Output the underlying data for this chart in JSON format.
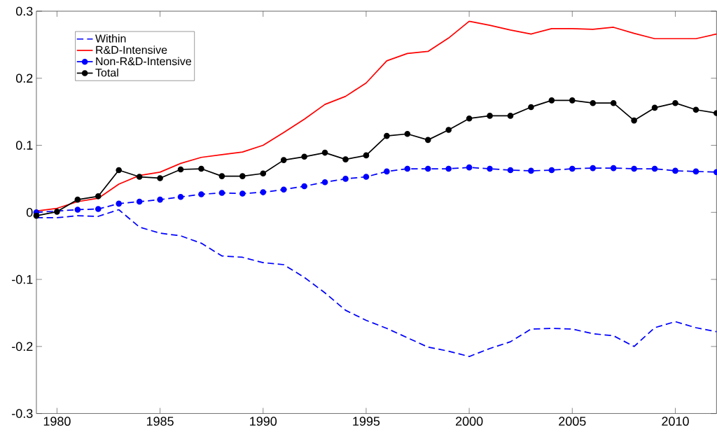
{
  "chart_data": {
    "type": "line",
    "x": [
      1979,
      1980,
      1981,
      1982,
      1983,
      1984,
      1985,
      1986,
      1987,
      1988,
      1989,
      1990,
      1991,
      1992,
      1993,
      1994,
      1995,
      1996,
      1997,
      1998,
      1999,
      2000,
      2001,
      2002,
      2003,
      2004,
      2005,
      2006,
      2007,
      2008,
      2009,
      2010,
      2011,
      2012
    ],
    "series": [
      {
        "name": "Within",
        "color": "#0000ff",
        "line_style": "dashed",
        "marker": "none",
        "values": [
          -0.008,
          -0.008,
          -0.005,
          -0.006,
          0.004,
          -0.022,
          -0.031,
          -0.035,
          -0.046,
          -0.065,
          -0.067,
          -0.075,
          -0.078,
          -0.097,
          -0.12,
          -0.146,
          -0.161,
          -0.173,
          -0.187,
          -0.201,
          -0.207,
          -0.215,
          -0.203,
          -0.193,
          -0.174,
          -0.173,
          -0.174,
          -0.181,
          -0.184,
          -0.2,
          -0.172,
          -0.163,
          -0.172,
          -0.178
        ]
      },
      {
        "name": "R&D-Intensive",
        "color": "#ff0000",
        "line_style": "solid",
        "marker": "none",
        "values": [
          0.002,
          0.006,
          0.016,
          0.021,
          0.042,
          0.055,
          0.06,
          0.073,
          0.082,
          0.086,
          0.09,
          0.1,
          0.119,
          0.139,
          0.161,
          0.173,
          0.193,
          0.226,
          0.237,
          0.24,
          0.26,
          0.285,
          0.279,
          0.272,
          0.266,
          0.274,
          0.274,
          0.273,
          0.276,
          0.267,
          0.259,
          0.259,
          0.259,
          0.266
        ]
      },
      {
        "name": "Non-R&D-Intensive",
        "color": "#0000ff",
        "line_style": "dashed",
        "marker": "circle",
        "values": [
          0.0,
          null,
          0.004,
          0.005,
          0.013,
          0.016,
          0.019,
          0.023,
          0.027,
          0.029,
          0.028,
          0.03,
          0.034,
          0.039,
          0.045,
          0.05,
          0.053,
          0.061,
          0.065,
          0.065,
          0.065,
          0.067,
          0.065,
          0.063,
          0.062,
          0.063,
          0.065,
          0.066,
          0.066,
          0.065,
          0.065,
          0.062,
          0.061,
          0.06
        ]
      },
      {
        "name": "Total",
        "color": "#000000",
        "line_style": "solid",
        "marker": "circle",
        "values": [
          -0.005,
          0.001,
          0.019,
          0.024,
          0.063,
          0.053,
          0.051,
          0.064,
          0.065,
          0.054,
          0.054,
          0.058,
          0.078,
          0.083,
          0.089,
          0.079,
          0.085,
          0.114,
          0.117,
          0.108,
          0.123,
          0.14,
          0.144,
          0.144,
          0.157,
          0.167,
          0.167,
          0.163,
          0.163,
          0.137,
          0.156,
          0.163,
          0.153,
          0.148
        ]
      }
    ],
    "xlim": [
      1979,
      2012
    ],
    "ylim": [
      -0.3,
      0.3
    ],
    "xticks": [
      1980,
      1985,
      1990,
      1995,
      2000,
      2005,
      2010
    ],
    "yticks": [
      -0.3,
      -0.2,
      -0.1,
      0,
      0.1,
      0.2,
      0.3
    ],
    "grid": false,
    "legend": "top left"
  }
}
